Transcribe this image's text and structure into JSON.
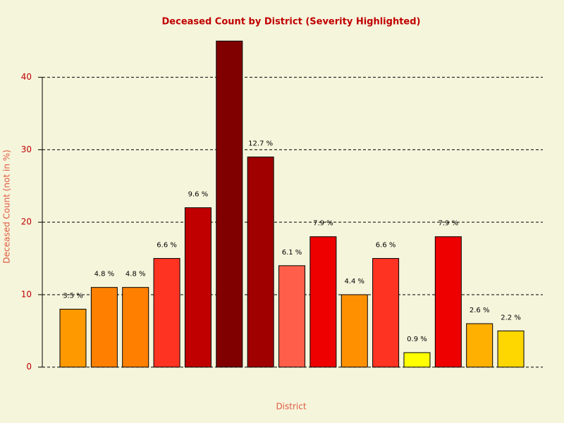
{
  "chart_data": {
    "type": "bar",
    "title": "Deceased Count by District (Severity Highlighted)",
    "xlabel": "District",
    "ylabel": "Deceased Count (not in %)",
    "values": [
      8,
      11,
      11,
      15,
      22,
      45,
      29,
      14,
      18,
      10,
      15,
      2,
      18,
      6,
      5
    ],
    "value_labels": [
      "3.5 %",
      "4.8 %",
      "4.8 %",
      "6.6 %",
      "9.6 %",
      null,
      "12.7 %",
      "6.1 %",
      "7.9 %",
      "4.4 %",
      "6.6 %",
      "0.9 %",
      "7.9 %",
      "2.6 %",
      "2.2 %"
    ],
    "colors": [
      "#FF9900",
      "#FF8000",
      "#FF8000",
      "#FF3322",
      "#C00000",
      "#800000",
      "#A00000",
      "#FF5F4A",
      "#EE0000",
      "#FF9000",
      "#FF3322",
      "#FFFF00",
      "#EE0000",
      "#FFB000",
      "#FFD700"
    ],
    "ylim": [
      -0.9,
      45.8
    ],
    "yticks": [
      0,
      10,
      20,
      30,
      40
    ],
    "grid": true
  }
}
